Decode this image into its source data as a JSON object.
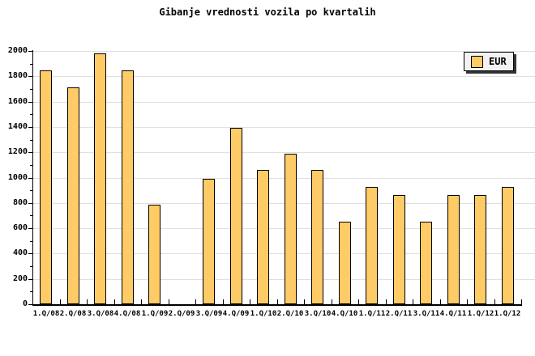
{
  "title": "Gibanje vrednosti vozila po kvartalih",
  "legend": {
    "label": "EUR"
  },
  "colors": {
    "bar_fill": "#ffcb66",
    "bar_border": "#000000",
    "gridline": "#e0e0e0",
    "axis": "#000000",
    "legend_bg": "#f2f2f2",
    "legend_shadow": "#333333",
    "background": "#ffffff"
  },
  "chart_data": {
    "type": "bar",
    "title": "Gibanje vrednosti vozila po kvartalih",
    "categories": [
      "1.Q/08",
      "2.Q/08",
      "3.Q/08",
      "4.Q/08",
      "1.Q/09",
      "2.Q/09",
      "3.Q/09",
      "4.Q/09",
      "1.Q/10",
      "2.Q/10",
      "3.Q/10",
      "4.Q/10",
      "1.Q/11",
      "2.Q/11",
      "3.Q/11",
      "4.Q/11",
      "1.Q/12",
      "1.Q/12"
    ],
    "series": [
      {
        "name": "EUR",
        "values": [
          1845,
          1715,
          1980,
          1845,
          785,
          0,
          990,
          1390,
          1060,
          1190,
          1060,
          650,
          925,
          860,
          650,
          860,
          860,
          925
        ]
      }
    ],
    "xlabel": "",
    "ylabel": "",
    "ylim": [
      0,
      2000
    ],
    "ytick_step": 200,
    "yticks": [
      0,
      200,
      400,
      600,
      800,
      1000,
      1200,
      1400,
      1600,
      1800,
      2000
    ],
    "grid": true,
    "legend_position": "top-right",
    "note": "2.Q/09 has no bar (value 0); last two categories are both labeled 1.Q/12"
  }
}
